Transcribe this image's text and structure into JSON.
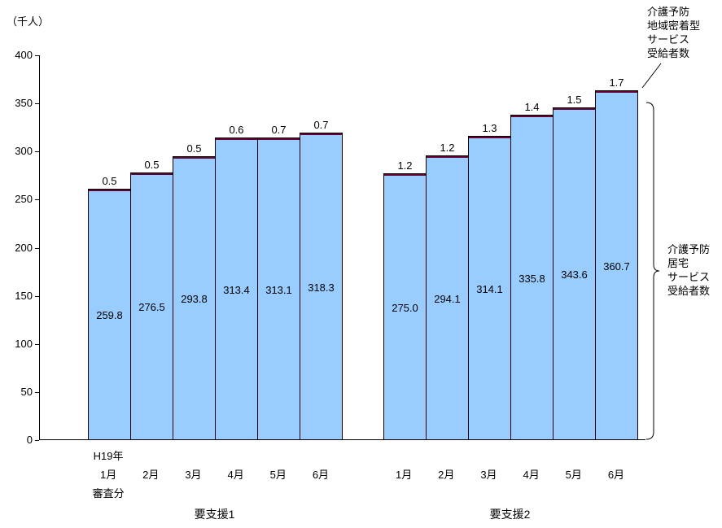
{
  "chart_data": {
    "type": "bar",
    "stacked": true,
    "ylabel": "（千人）",
    "ylim": [
      0,
      400
    ],
    "ytick_step": 50,
    "grid": false,
    "series_meta": [
      {
        "name": "介護予防居宅サービス受給者数",
        "color": "#99CCFF"
      },
      {
        "name": "介護予防地域密着型サービス受給者数",
        "color": "#660033"
      }
    ],
    "groups": [
      {
        "label": "要支援1",
        "x_first_line": "H19年",
        "x_third_line": "審査分",
        "categories": [
          "1月",
          "2月",
          "3月",
          "4月",
          "5月",
          "6月"
        ],
        "base_values": [
          259.8,
          276.5,
          293.8,
          313.4,
          313.1,
          318.3
        ],
        "base_labels": [
          "259.8",
          "276.5",
          "293.8",
          "313.4",
          "313.1",
          "318.3"
        ],
        "top_values": [
          0.5,
          0.5,
          0.5,
          0.6,
          0.7,
          0.7
        ],
        "top_labels": [
          "0.5",
          "0.5",
          "0.5",
          "0.6",
          "0.7",
          "0.7"
        ]
      },
      {
        "label": "要支援2",
        "x_first_line": "",
        "x_third_line": "",
        "categories": [
          "1月",
          "2月",
          "3月",
          "4月",
          "5月",
          "6月"
        ],
        "base_values": [
          275.0,
          294.1,
          314.1,
          335.8,
          343.6,
          360.7
        ],
        "base_labels": [
          "275.0",
          "294.1",
          "314.1",
          "335.8",
          "343.6",
          "360.7"
        ],
        "top_values": [
          1.2,
          1.2,
          1.3,
          1.4,
          1.5,
          1.7
        ],
        "top_labels": [
          "1.2",
          "1.2",
          "1.3",
          "1.4",
          "1.5",
          "1.7"
        ]
      }
    ],
    "annotations": {
      "callout_top_right": "介護予防\n地域密着型\nサービス\n受給者数",
      "brace_right": "介護予防\n居宅\nサービス\n受給者数"
    }
  }
}
